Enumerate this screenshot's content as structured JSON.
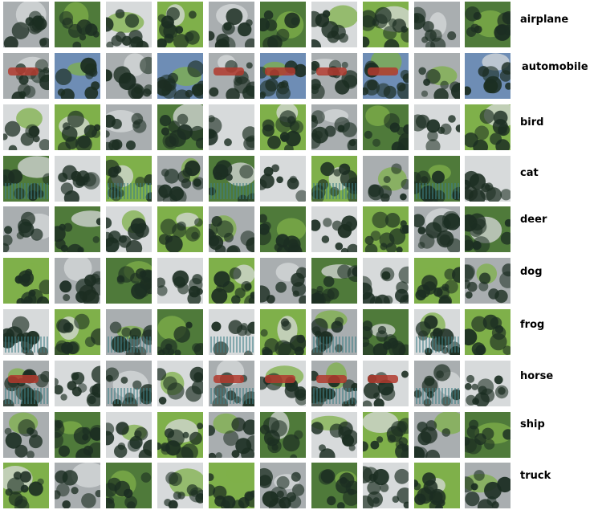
{
  "rows": [
    {
      "label": "airplane"
    },
    {
      "label": "automobile"
    },
    {
      "label": "bird"
    },
    {
      "label": "cat"
    },
    {
      "label": "deer"
    },
    {
      "label": "dog"
    },
    {
      "label": "frog"
    },
    {
      "label": "horse"
    },
    {
      "label": "ship"
    },
    {
      "label": "truck"
    }
  ],
  "columns_per_row": 10,
  "palette": {
    "dark_green": "#1c2e22",
    "mid_green": "#4f7a3a",
    "light_green": "#7fb04a",
    "grey": "#a9aeb0",
    "light_grey": "#d7dadb",
    "sky_blue": "#6e8db5",
    "teal": "#3e7f86",
    "red": "#b23a2e",
    "white": "#ffffff"
  }
}
